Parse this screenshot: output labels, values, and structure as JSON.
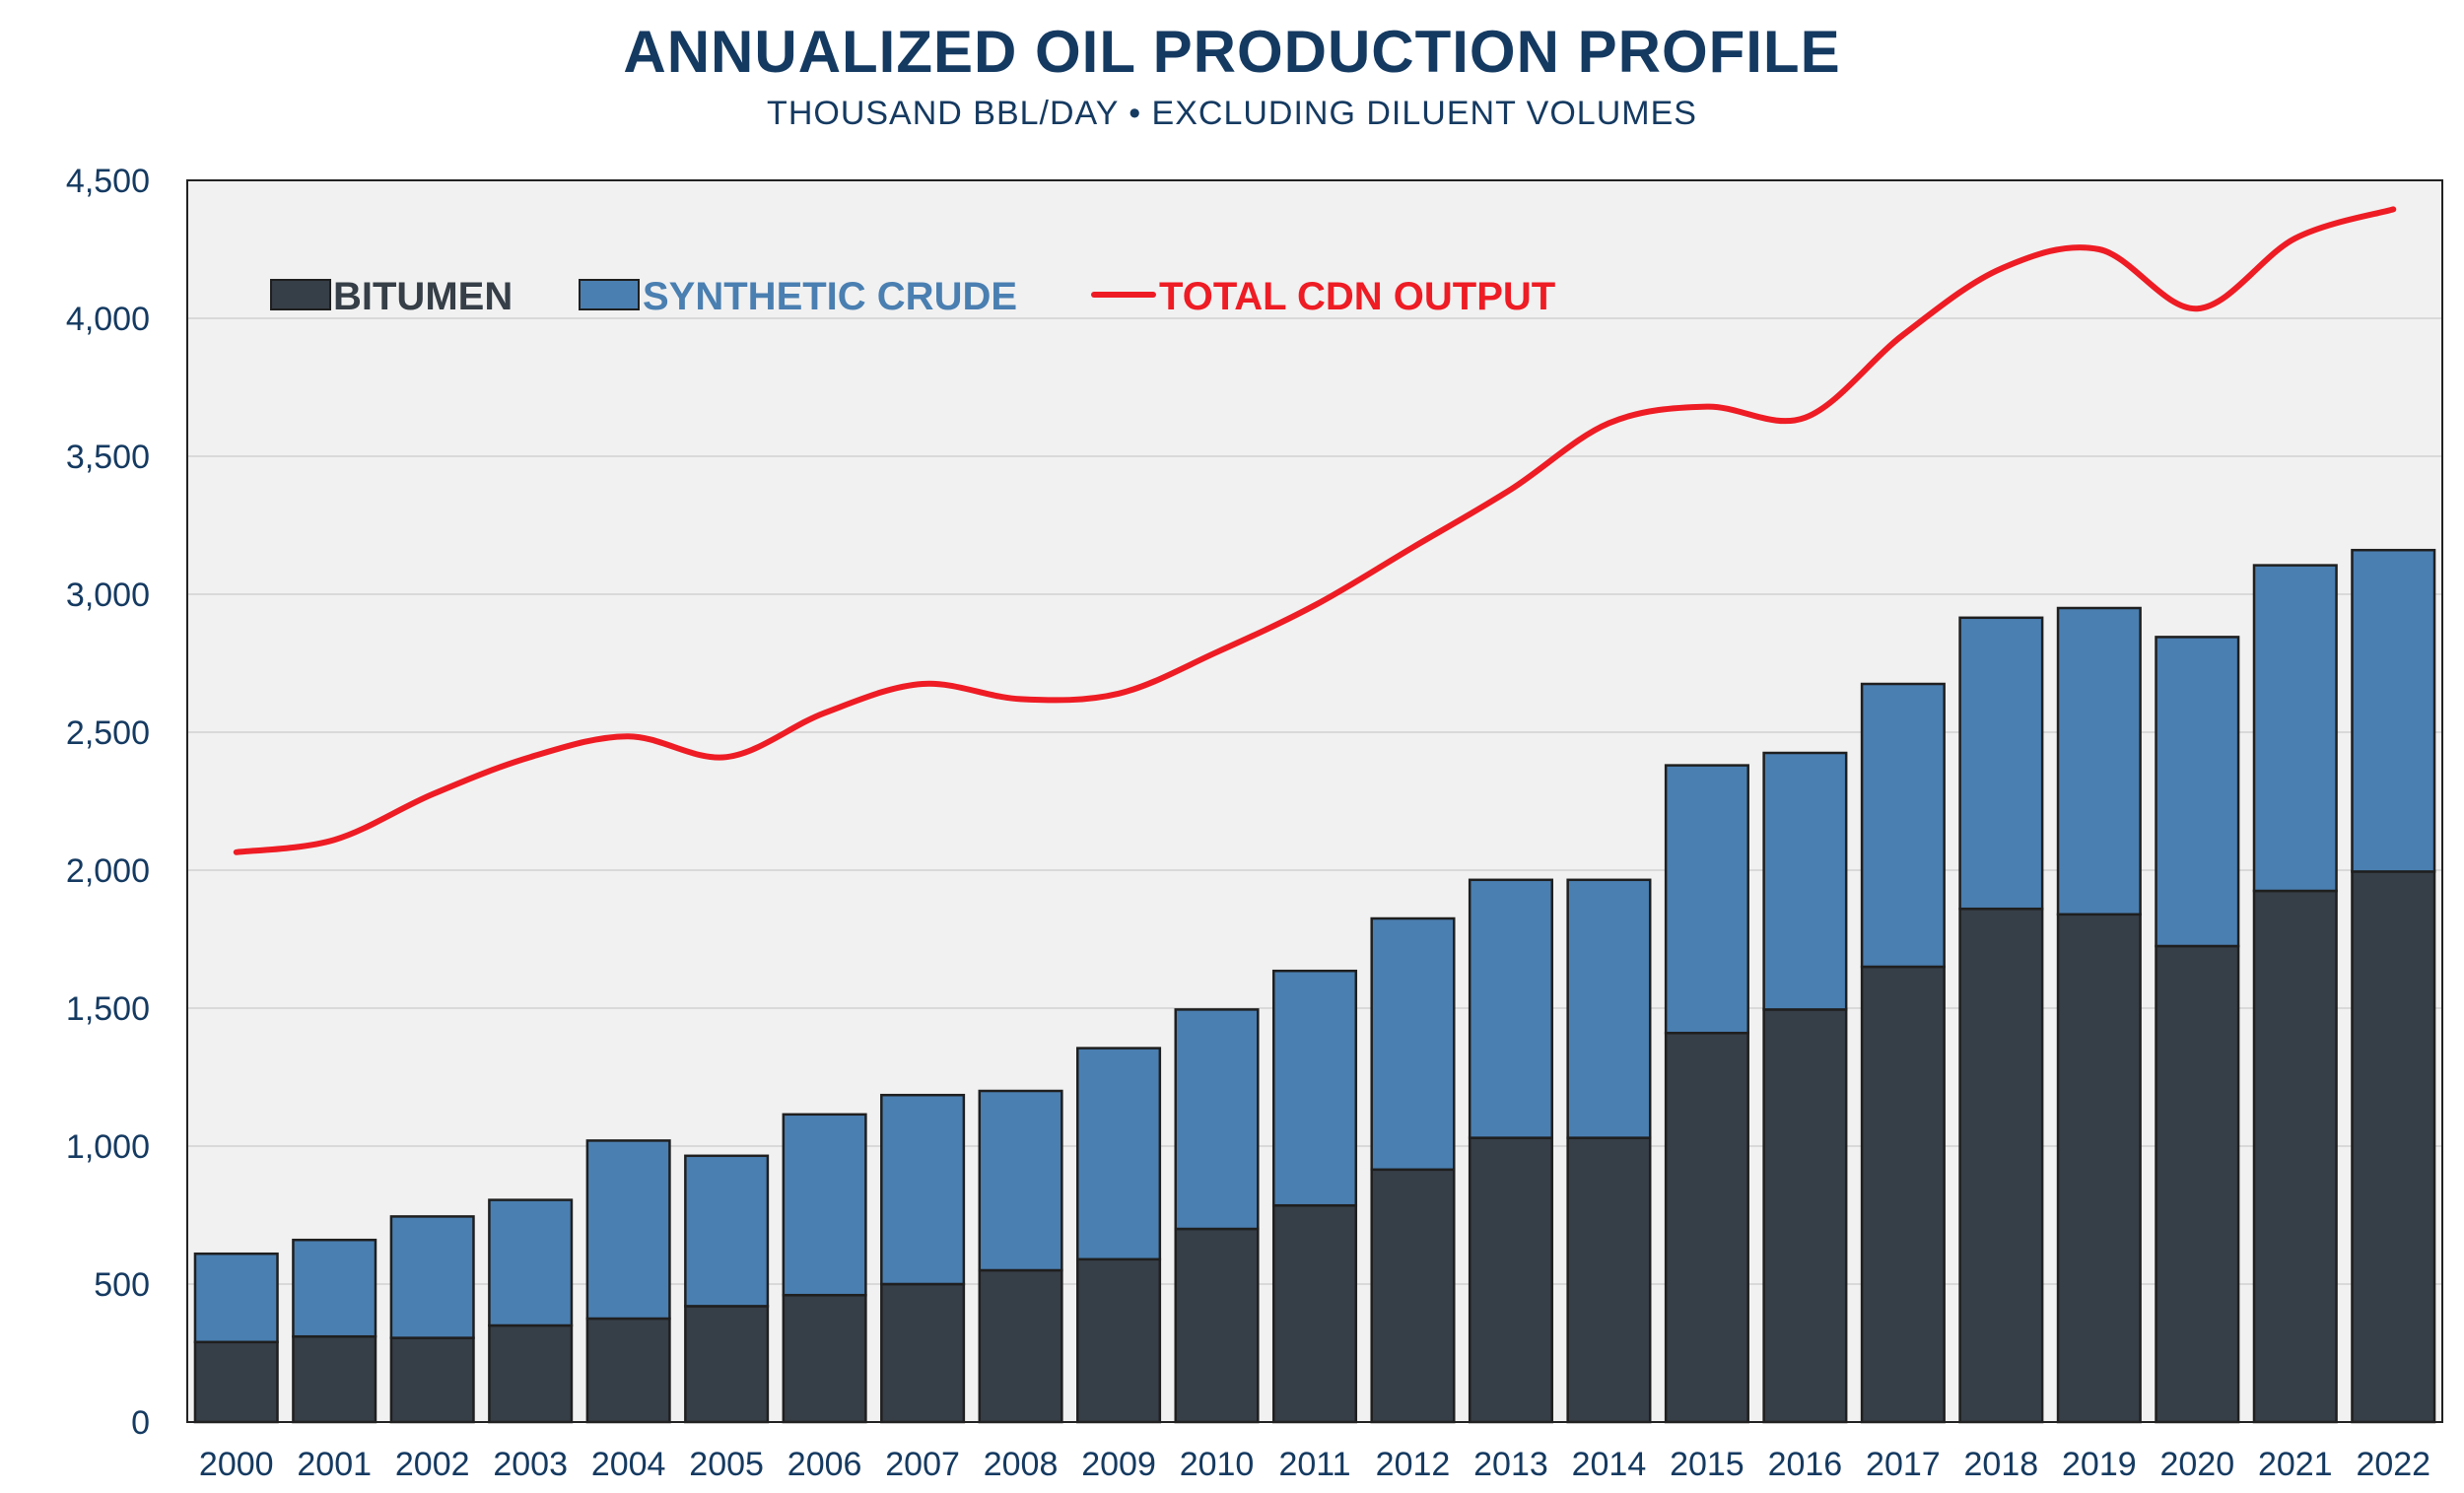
{
  "colors": {
    "navy": "#153a61",
    "bitumen": "#363e47",
    "synthetic": "#4a7fb1",
    "total_line": "#ee1c24",
    "plot_bg": "#f1f1f1",
    "grid": "#d9d9d9",
    "bar_outline": "#1f1f1f"
  },
  "chart_data": {
    "type": "bar",
    "title": "ANNUALIZED OIL PRODUCTION PROFILE",
    "subtitle": "THOUSAND BBL/DAY • EXCLUDING DILUENT VOLUMES",
    "stacked": true,
    "categories": [
      "2000",
      "2001",
      "2002",
      "2003",
      "2004",
      "2005",
      "2006",
      "2007",
      "2008",
      "2009",
      "2010",
      "2011",
      "2012",
      "2013",
      "2014",
      "2015",
      "2016",
      "2017",
      "2018",
      "2019",
      "2020",
      "2021",
      "2022"
    ],
    "series": [
      {
        "name": "BITUMEN",
        "type": "bar",
        "color": "#363e47",
        "values": [
          290,
          310,
          305,
          350,
          375,
          420,
          460,
          500,
          550,
          590,
          700,
          785,
          915,
          1030,
          1030,
          1410,
          1495,
          1650,
          1860,
          1840,
          1725,
          1925,
          1995
        ]
      },
      {
        "name": "SYNTHETIC CRUDE",
        "type": "bar",
        "color": "#4a7fb1",
        "values": [
          320,
          350,
          440,
          455,
          645,
          545,
          655,
          685,
          650,
          765,
          795,
          850,
          910,
          935,
          935,
          970,
          930,
          1025,
          1055,
          1110,
          1120,
          1180,
          1165
        ]
      },
      {
        "name": "TOTAL CDN OUTPUT",
        "type": "line",
        "color": "#ee1c24",
        "values": [
          2065,
          2110,
          2275,
          2410,
          2485,
          2410,
          2570,
          2675,
          2620,
          2640,
          2790,
          2960,
          3170,
          3380,
          3620,
          3680,
          3640,
          3940,
          4180,
          4250,
          4035,
          4290,
          4395
        ]
      }
    ],
    "ylim": [
      0,
      4500
    ],
    "yticks": [
      0,
      500,
      1000,
      1500,
      2000,
      2500,
      3000,
      3500,
      4000,
      4500
    ],
    "ytick_labels": [
      "0",
      "500",
      "1,000",
      "1,500",
      "2,000",
      "2,500",
      "3,000",
      "3,500",
      "4,000",
      "4,500"
    ],
    "xlabel": "",
    "ylabel": "",
    "grid": true,
    "legend": "top-left, inside plot"
  }
}
